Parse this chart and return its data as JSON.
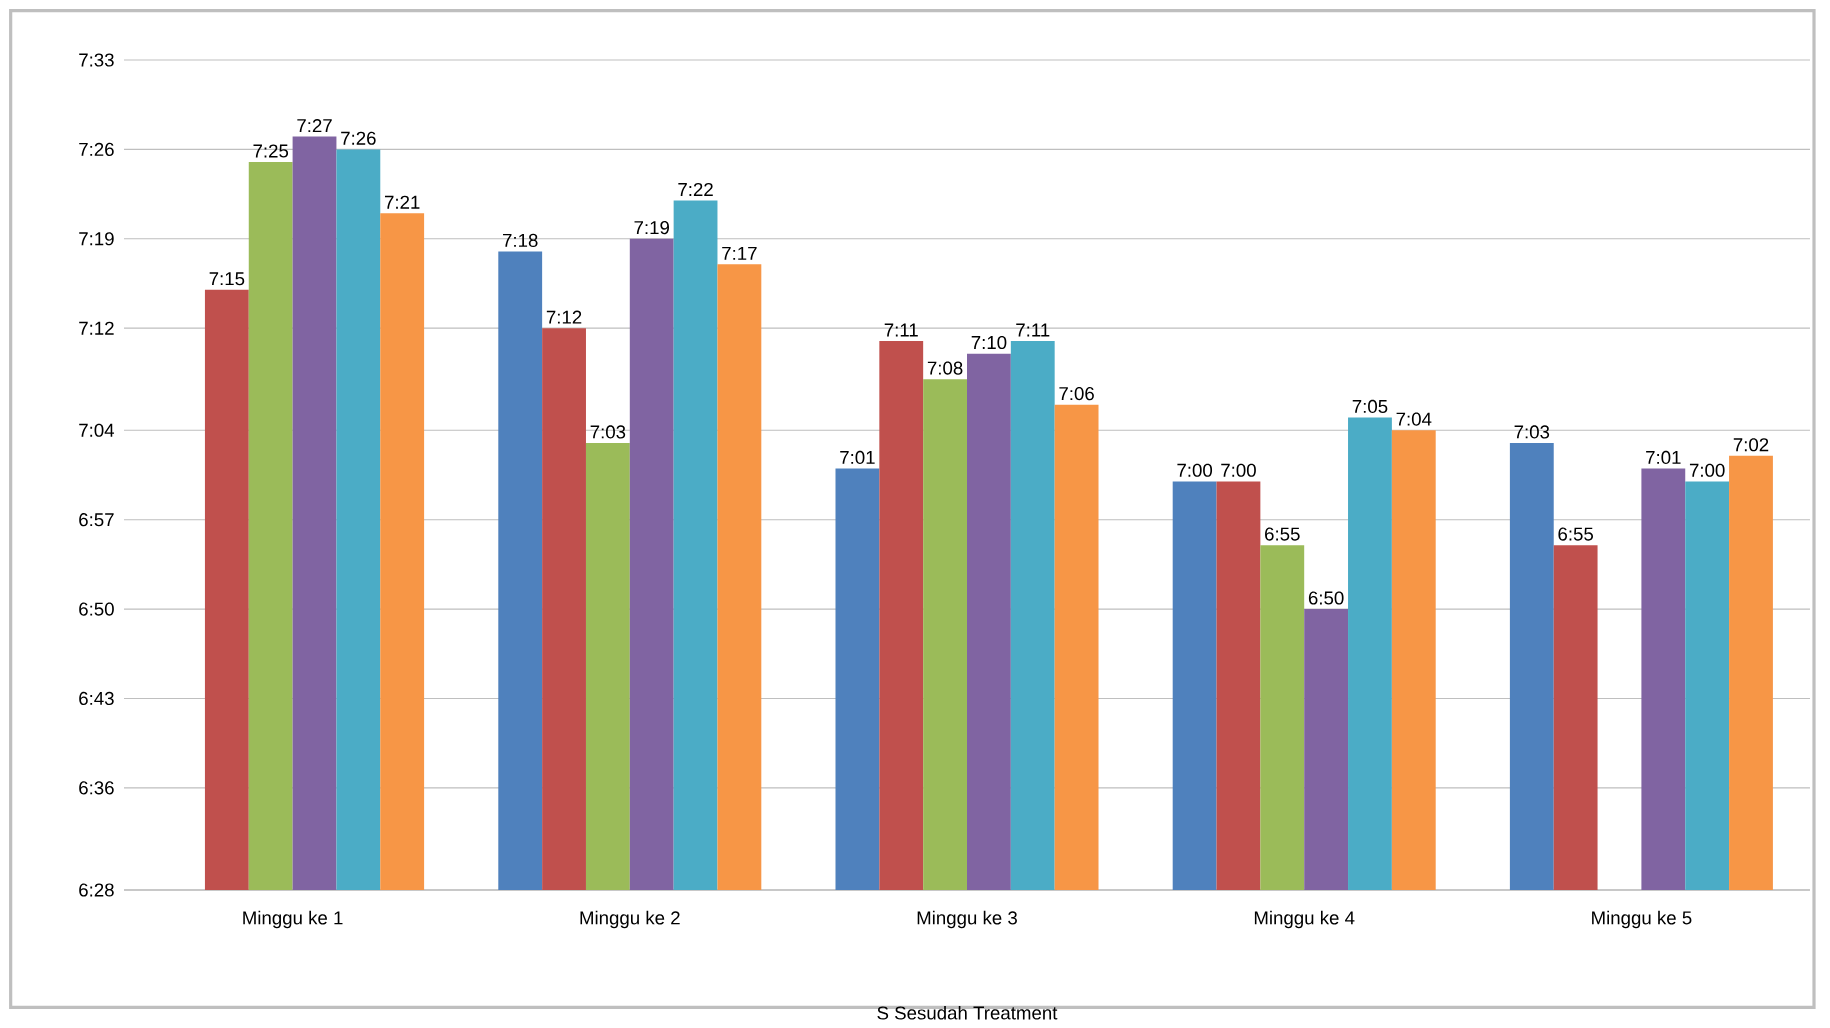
{
  "chart_data": {
    "type": "bar",
    "xlabel": "S Sesudah Treatment",
    "categories": [
      "Minggu ke 1",
      "Minggu ke 2",
      "Minggu ke 3",
      "Minggu ke 4",
      "Minggu ke 5"
    ],
    "series": [
      {
        "color": "#4f81bd",
        "values": [
          null,
          7.3,
          7.0167,
          7.0,
          7.05
        ],
        "value_labels": [
          null,
          "7:18",
          "7:01",
          "7:00",
          "7:03"
        ]
      },
      {
        "color": "#c0504d",
        "values": [
          7.25,
          7.2,
          7.1833,
          7.0,
          6.9167
        ],
        "value_labels": [
          "7:15",
          "7:12",
          "7:11",
          "7:00",
          "6:55"
        ]
      },
      {
        "color": "#9bbb59",
        "values": [
          7.4167,
          7.05,
          7.1333,
          6.9167,
          null
        ],
        "value_labels": [
          "7:25",
          "7:03",
          "7:08",
          "6:55",
          null
        ]
      },
      {
        "color": "#8064a2",
        "values": [
          7.45,
          7.3167,
          7.1667,
          6.8333,
          7.0167
        ],
        "value_labels": [
          "7:27",
          "7:19",
          "7:10",
          "6:50",
          "7:01"
        ]
      },
      {
        "color": "#4bacc6",
        "values": [
          7.4333,
          7.3667,
          7.1833,
          7.0833,
          7.0
        ],
        "value_labels": [
          "7:26",
          "7:22",
          "7:11",
          "7:05",
          "7:00"
        ]
      },
      {
        "color": "#f79646",
        "values": [
          7.35,
          7.2833,
          7.1,
          7.0667,
          7.0333
        ],
        "value_labels": [
          "7:21",
          "7:17",
          "7:06",
          "7:04",
          "7:02"
        ]
      }
    ],
    "ylim": [
      6.4667,
      7.55
    ],
    "yticks": [
      {
        "value": 6.4667,
        "label": "6:28"
      },
      {
        "value": 6.6,
        "label": "6:36"
      },
      {
        "value": 6.7167,
        "label": "6:43"
      },
      {
        "value": 6.8333,
        "label": "6:50"
      },
      {
        "value": 6.95,
        "label": "6:57"
      },
      {
        "value": 7.0667,
        "label": "7:04"
      },
      {
        "value": 7.2,
        "label": "7:12"
      },
      {
        "value": 7.3167,
        "label": "7:19"
      },
      {
        "value": 7.4333,
        "label": "7:26"
      },
      {
        "value": 7.55,
        "label": "7:33"
      }
    ],
    "grid": "y"
  }
}
